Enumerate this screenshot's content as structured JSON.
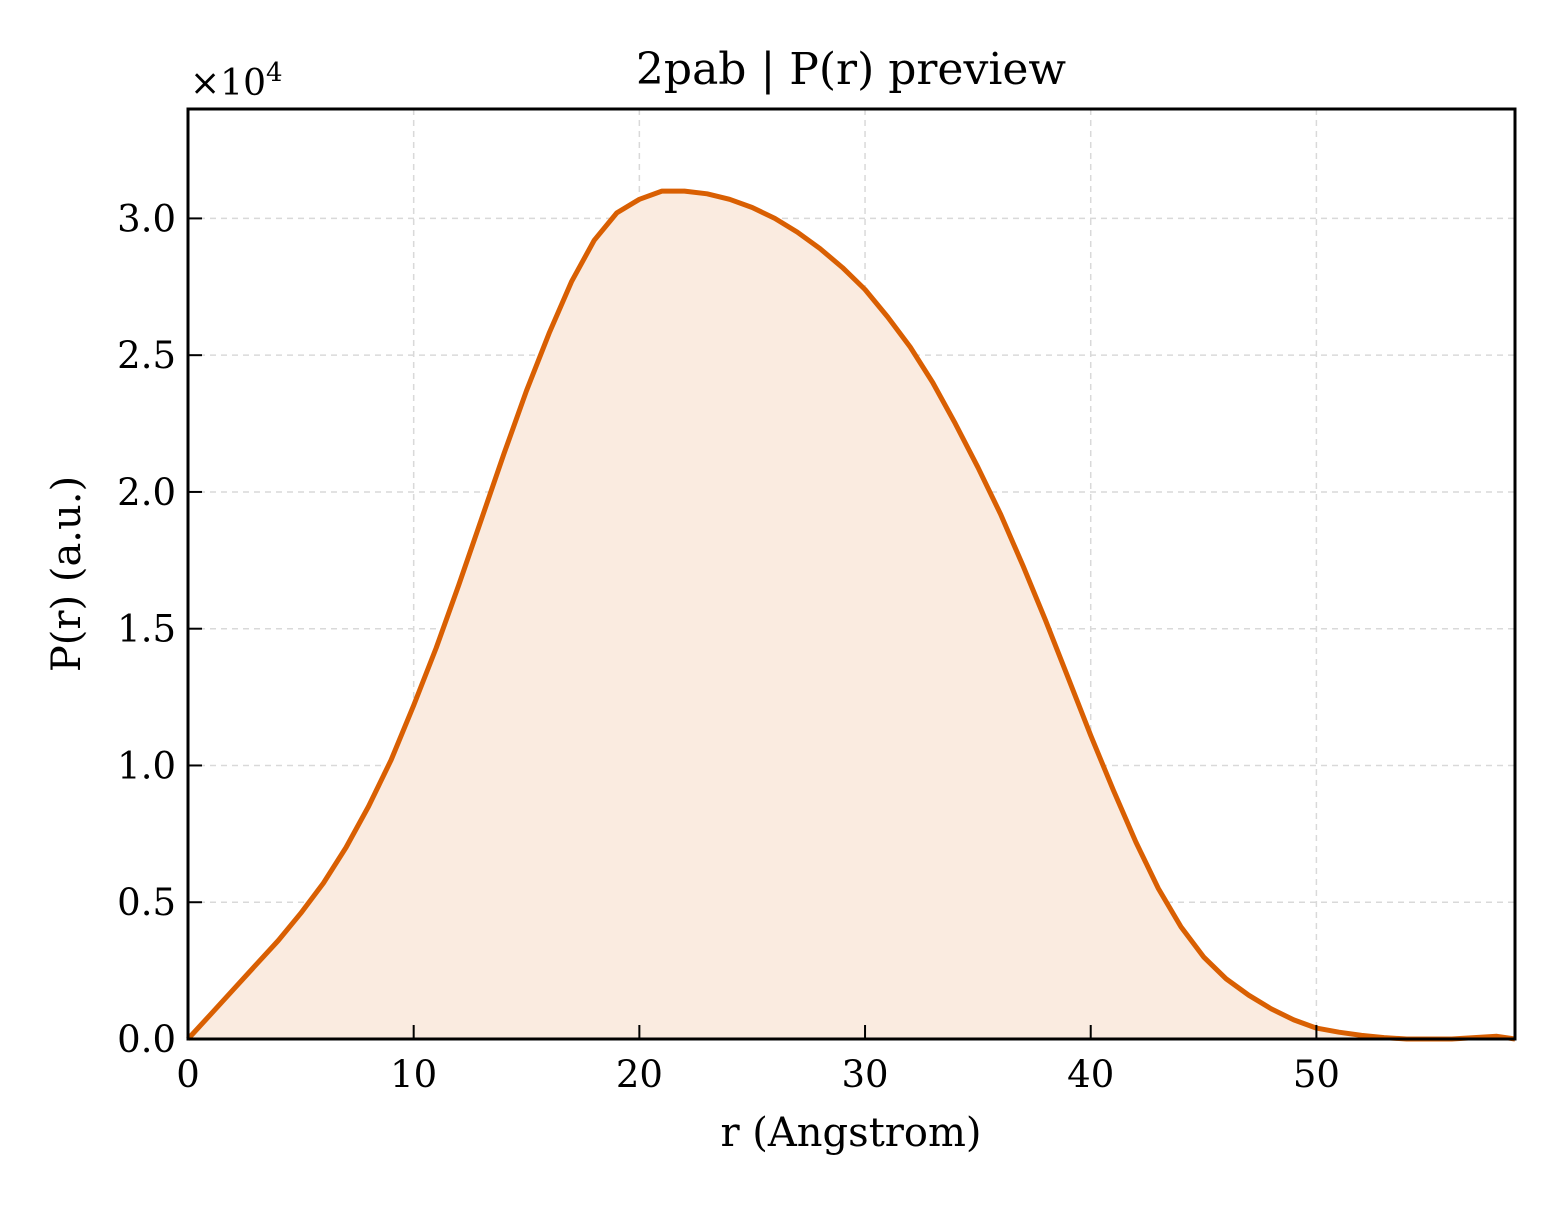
{
  "chart_data": {
    "type": "area",
    "title": "2pab | P(r) preview",
    "xlabel": "r (Angstrom)",
    "ylabel": "P(r) (a.u.)",
    "y_multiplier": "×10",
    "y_multiplier_exponent": "4",
    "xlim": [
      0,
      58.8
    ],
    "ylim": [
      0,
      3.4
    ],
    "x_ticks": [
      0,
      10,
      20,
      30,
      40,
      50
    ],
    "x_tick_labels": [
      "0",
      "10",
      "20",
      "30",
      "40",
      "50"
    ],
    "y_ticks": [
      0,
      0.5,
      1.0,
      1.5,
      2.0,
      2.5,
      3.0
    ],
    "y_tick_labels": [
      "0.0",
      "0.5",
      "1.0",
      "1.5",
      "2.0",
      "2.5",
      "3.0"
    ],
    "grid": true,
    "line_color": "#d95f02",
    "fill_color": "#faebe0",
    "series": [
      {
        "x": [
          0,
          1,
          2,
          3,
          4,
          5,
          6,
          7,
          8,
          9,
          10,
          11,
          12,
          13,
          14,
          15,
          16,
          17,
          18,
          19,
          20,
          21,
          22,
          23,
          24,
          25,
          26,
          27,
          28,
          29,
          30,
          31,
          32,
          33,
          34,
          35,
          36,
          37,
          38,
          39,
          40,
          41,
          42,
          43,
          44,
          45,
          46,
          47,
          48,
          49,
          50,
          51,
          52,
          53,
          54,
          55,
          56,
          57,
          58,
          58.8
        ],
        "y": [
          0.0,
          0.09,
          0.18,
          0.27,
          0.36,
          0.46,
          0.57,
          0.7,
          0.85,
          1.02,
          1.22,
          1.43,
          1.66,
          1.9,
          2.14,
          2.37,
          2.58,
          2.77,
          2.92,
          3.02,
          3.07,
          3.1,
          3.1,
          3.09,
          3.07,
          3.04,
          3.0,
          2.95,
          2.89,
          2.82,
          2.74,
          2.64,
          2.53,
          2.4,
          2.25,
          2.09,
          1.92,
          1.73,
          1.53,
          1.32,
          1.11,
          0.91,
          0.72,
          0.55,
          0.41,
          0.3,
          0.22,
          0.16,
          0.11,
          0.07,
          0.04,
          0.025,
          0.013,
          0.005,
          0.0,
          0.0,
          0.0,
          0.005,
          0.01,
          0.0
        ]
      }
    ]
  }
}
